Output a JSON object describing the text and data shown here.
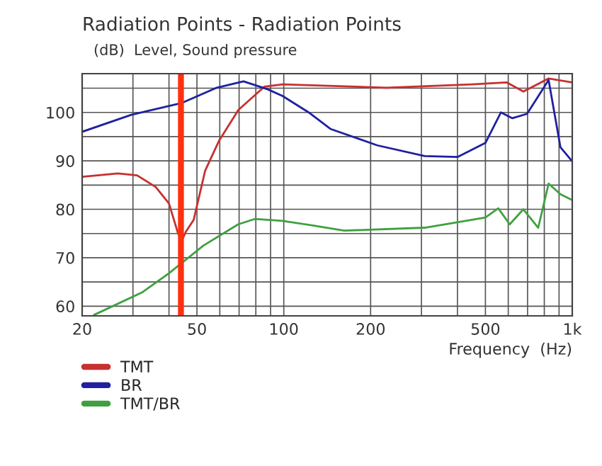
{
  "chart_data": {
    "type": "line",
    "title": "Radiation Points - Radiation Points",
    "subtitle": "(dB)  Level, Sound pressure",
    "xlabel": "Frequency  (Hz)",
    "log": "x",
    "xlim": [
      20,
      1000
    ],
    "ylim": [
      58,
      108
    ],
    "xticks": [
      20,
      {
        "value": 30,
        "label": null
      },
      {
        "value": 40,
        "label": null
      },
      50,
      {
        "value": 60,
        "label": null
      },
      {
        "value": 70,
        "label": null
      },
      {
        "value": 80,
        "label": null
      },
      {
        "value": 90,
        "label": null
      },
      100,
      200,
      {
        "value": 300,
        "label": null
      },
      {
        "value": 400,
        "label": null
      },
      500,
      {
        "value": 600,
        "label": null
      },
      {
        "value": 700,
        "label": null
      },
      {
        "value": 800,
        "label": null
      },
      {
        "value": 900,
        "label": null
      },
      {
        "value": 1000,
        "label": "1k"
      }
    ],
    "yticks": [
      60,
      {
        "value": 65,
        "label": null
      },
      70,
      {
        "value": 75,
        "label": null
      },
      80,
      {
        "value": 85,
        "label": null
      },
      90,
      {
        "value": 95,
        "label": null
      },
      100,
      {
        "value": 105,
        "label": null
      }
    ],
    "grid": true,
    "legend": "bottom left",
    "ref_lines": [
      {
        "axis": "x",
        "value": 44,
        "label": null,
        "color": "#ff3010"
      }
    ],
    "series": [
      {
        "name": "TMT",
        "color": "#c83030",
        "x": [
          20,
          26.6,
          31,
          36,
          40,
          43,
          44.3,
          45.8,
          48.7,
          53.4,
          59.7,
          69.6,
          85.6,
          99,
          227,
          449,
          592,
          677,
          828,
          1000
        ],
        "values": [
          86.7,
          87.4,
          87,
          84.6,
          81.2,
          75,
          73.5,
          75.4,
          77.8,
          88,
          94.2,
          100.5,
          105.3,
          105.8,
          105.1,
          105.8,
          106.2,
          104.3,
          107,
          106.2
        ]
      },
      {
        "name": "BR",
        "color": "#2020a0",
        "x": [
          20,
          29.6,
          44.1,
          58.6,
          72.5,
          87.7,
          99,
          122,
          145,
          211,
          308,
          400,
          500,
          566,
          620,
          697,
          828,
          910,
          1000
        ],
        "values": [
          96,
          99.5,
          101.9,
          105.1,
          106.4,
          104.8,
          103.4,
          100,
          96.6,
          93.2,
          91,
          90.8,
          93.7,
          100,
          98.8,
          99.7,
          106.7,
          92.8,
          89.9
        ]
      },
      {
        "name": "TMT/BR",
        "color": "#40a040",
        "x": [
          22,
          32.4,
          40,
          52.6,
          69.5,
          79.3,
          99,
          125,
          162,
          308,
          500,
          554,
          607,
          677,
          762,
          828,
          910,
          1000
        ],
        "values": [
          58.2,
          62.9,
          66.8,
          72.5,
          76.9,
          78,
          77.6,
          76.7,
          75.6,
          76.2,
          78.3,
          80.2,
          76.9,
          80,
          76.2,
          85.3,
          83.1,
          81.9
        ]
      }
    ]
  }
}
